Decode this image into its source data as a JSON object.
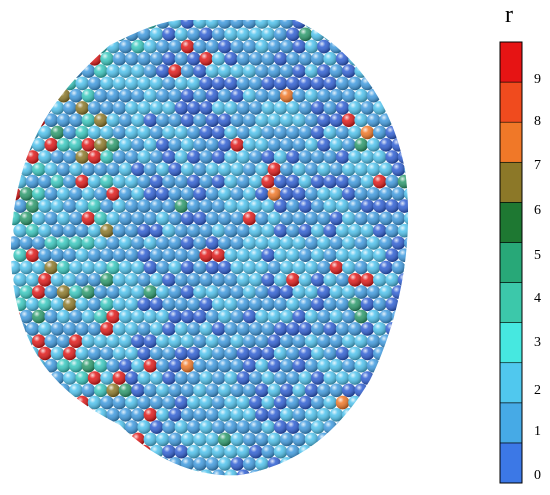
{
  "colorbar": {
    "title": "r",
    "tick_labels": [
      "0",
      "1",
      "2",
      "3",
      "4",
      "5",
      "6",
      "7",
      "8",
      "9"
    ],
    "colors": [
      "#3C78E6",
      "#46AAE6",
      "#50C8EE",
      "#46E8E0",
      "#3CC8AA",
      "#28A878",
      "#1E7832",
      "#8C7828",
      "#F07828",
      "#F04B1E",
      "#E61414"
    ]
  },
  "sphere_cluster": {
    "description_colors": {
      "dark_blue": "#2E5FD4",
      "blue": "#3F9BE0",
      "cyan": "#4FC3EE",
      "teal": "#38C9C0",
      "green": "#2A9A6C",
      "olive": "#8C7828",
      "orange": "#F07828",
      "red": "#E01818"
    }
  }
}
